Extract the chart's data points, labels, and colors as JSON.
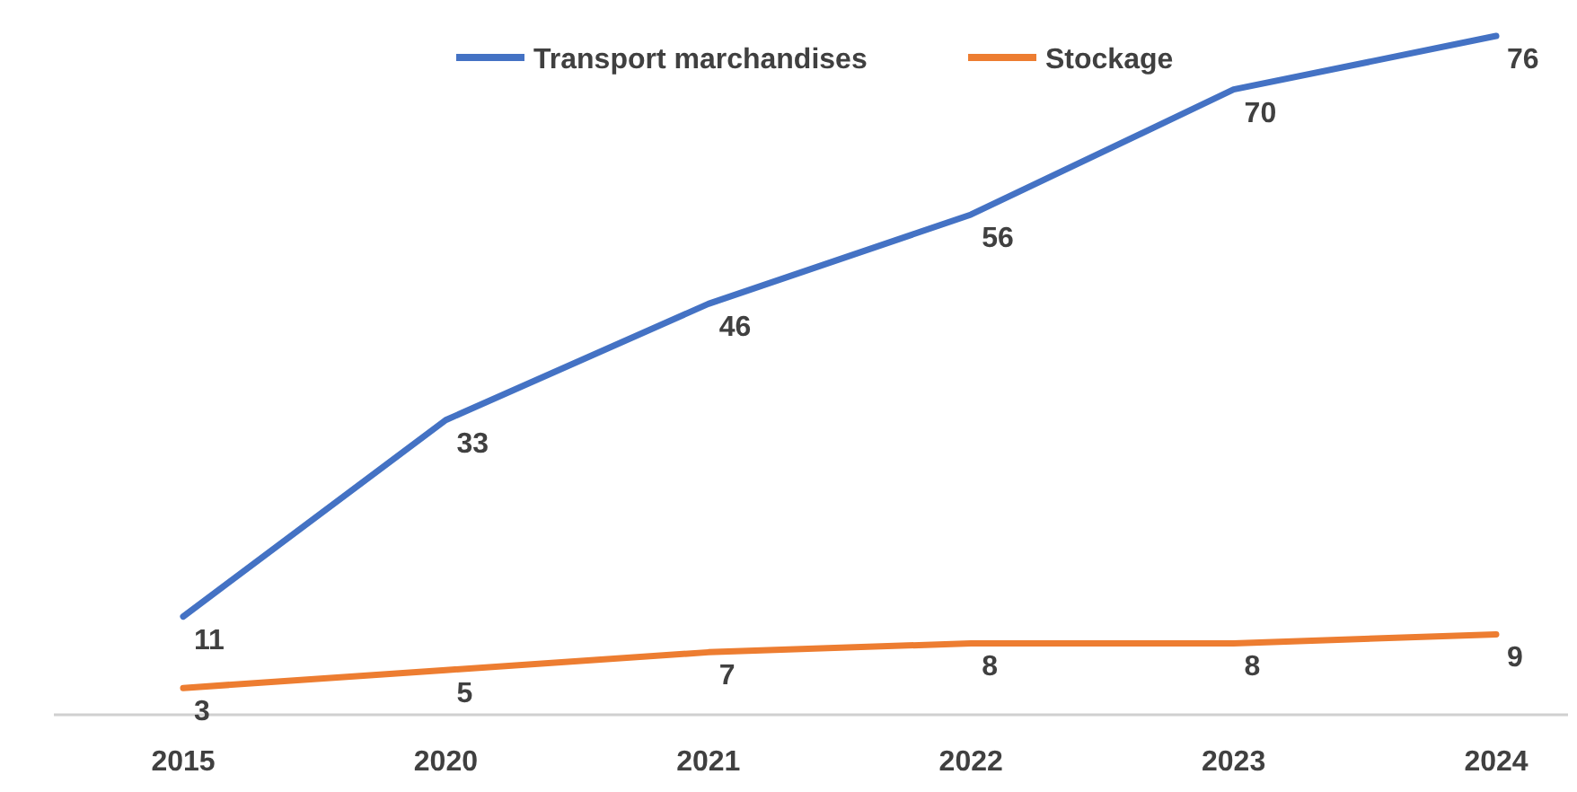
{
  "chart_data": {
    "type": "line",
    "categories": [
      "2015",
      "2020",
      "2021",
      "2022",
      "2023",
      "2024"
    ],
    "series": [
      {
        "name": "Transport marchandises",
        "color": "#4472c4",
        "values": [
          11,
          33,
          46,
          56,
          70,
          76
        ]
      },
      {
        "name": "Stockage",
        "color": "#ed7d31",
        "values": [
          3,
          5,
          7,
          8,
          8,
          9
        ]
      }
    ],
    "data_labels": true,
    "legend": "top"
  }
}
